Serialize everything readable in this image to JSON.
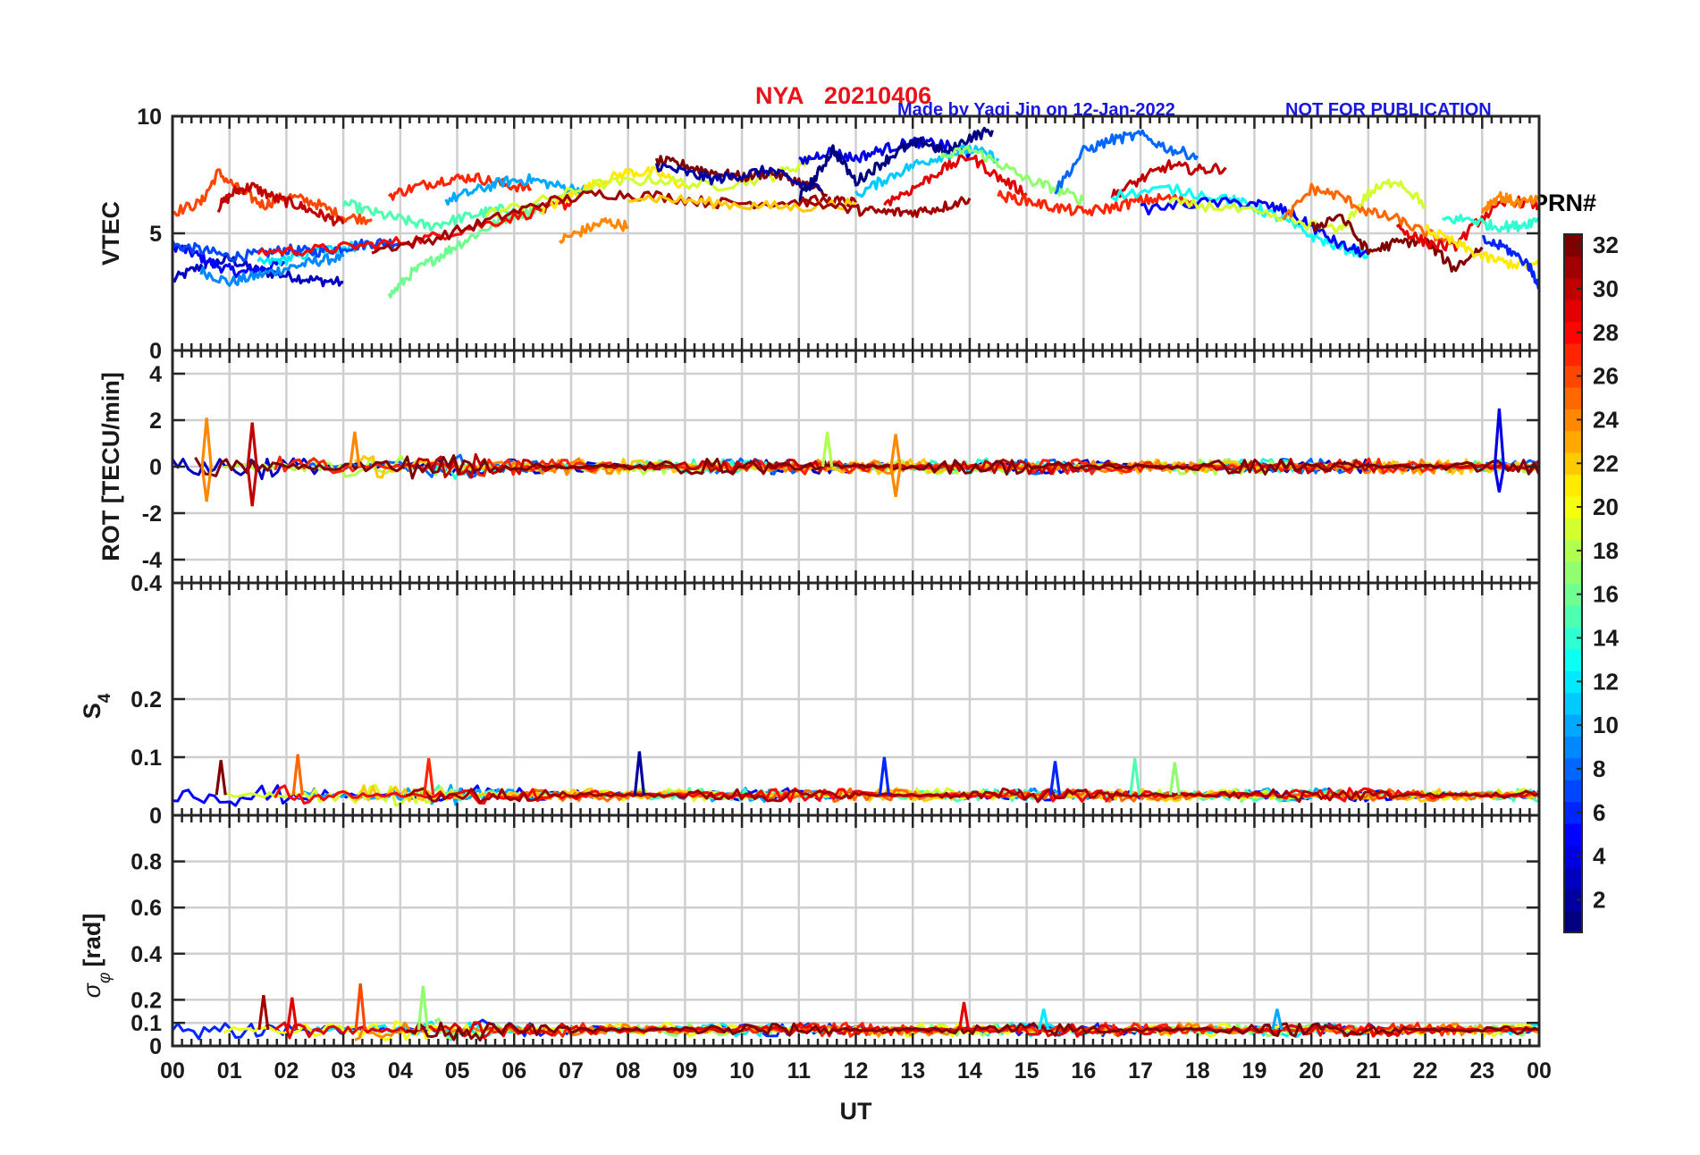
{
  "figure": {
    "station": "NYA",
    "date": "20210406",
    "credit": "Made by Yaqi Jin on 12-Jan-2022",
    "notice": "NOT FOR PUBLICATION"
  },
  "colorbar": {
    "label": "PRN#",
    "range": [
      1,
      32
    ],
    "ticks": [
      2,
      4,
      6,
      8,
      10,
      12,
      14,
      16,
      18,
      20,
      22,
      24,
      26,
      28,
      30,
      32
    ]
  },
  "chart_data": [
    {
      "type": "line",
      "panel": "vtec",
      "ylabel": "VTEC",
      "xlabel": "",
      "xlim": [
        0,
        24
      ],
      "ylim": [
        0,
        10
      ],
      "yticks": [
        0,
        5,
        10
      ],
      "grid": true,
      "color_by": "PRN",
      "note": "≈32 satellite traces colored by PRN; values estimated from gridlines",
      "series": [
        {
          "prn": 3,
          "x": [
            0,
            0.5,
            1,
            1.5,
            2,
            2.5,
            3
          ],
          "y": [
            3.0,
            3.6,
            3.9,
            3.4,
            3.2,
            3.0,
            2.9
          ]
        },
        {
          "prn": 5,
          "x": [
            0,
            0.4,
            0.8,
            1.2,
            1.6,
            2.0
          ],
          "y": [
            4.5,
            4.1,
            3.6,
            3.3,
            3.5,
            3.8
          ]
        },
        {
          "prn": 9,
          "x": [
            0.5,
            1.0,
            1.5,
            2.0,
            2.5,
            3.0
          ],
          "y": [
            3.4,
            2.9,
            3.2,
            3.5,
            3.8,
            4.0
          ]
        },
        {
          "prn": 12,
          "x": [
            1.5,
            2.0,
            2.5,
            3.0,
            3.4
          ],
          "y": [
            3.7,
            3.9,
            4.2,
            4.4,
            4.5
          ]
        },
        {
          "prn": 7,
          "x": [
            0.0,
            0.5,
            1.0,
            1.5,
            2.0,
            2.5,
            3.0,
            3.5,
            4.0
          ],
          "y": [
            4.5,
            4.3,
            4.0,
            4.1,
            4.3,
            4.2,
            4.4,
            4.6,
            4.6
          ]
        },
        {
          "prn": 26,
          "x": [
            0,
            0.5,
            0.8,
            1.2,
            1.6,
            2.0,
            2.5,
            3.0,
            3.5
          ],
          "y": [
            5.9,
            6.3,
            7.6,
            6.8,
            6.2,
            6.6,
            6.3,
            5.7,
            5.6
          ]
        },
        {
          "prn": 30,
          "x": [
            0.8,
            1.1,
            1.4,
            1.8,
            2.2,
            2.6,
            3.0
          ],
          "y": [
            6.1,
            6.8,
            7.0,
            6.5,
            6.2,
            5.8,
            5.4
          ]
        },
        {
          "prn": 15,
          "x": [
            3.0,
            3.5,
            4.0,
            4.5,
            5.0,
            5.5,
            6.0
          ],
          "y": [
            6.3,
            5.9,
            5.6,
            5.3,
            5.6,
            5.9,
            6.1
          ]
        },
        {
          "prn": 16,
          "x": [
            3.8,
            4.2,
            4.6,
            5.0,
            5.5,
            6.0,
            6.5
          ],
          "y": [
            2.3,
            3.3,
            3.9,
            4.5,
            5.2,
            5.8,
            6.1
          ]
        },
        {
          "prn": 27,
          "x": [
            3.8,
            4.3,
            4.8,
            5.3,
            5.8,
            6.3
          ],
          "y": [
            6.6,
            7.0,
            7.3,
            7.4,
            7.1,
            6.9
          ]
        },
        {
          "prn": 28,
          "x": [
            1.5,
            2.5,
            3.5,
            4.5,
            5.5,
            6.5,
            7.0
          ],
          "y": [
            4.2,
            4.3,
            4.5,
            4.8,
            5.4,
            6.0,
            6.3
          ]
        },
        {
          "prn": 10,
          "x": [
            4.8,
            5.3,
            5.8,
            6.3,
            6.8,
            7.3
          ],
          "y": [
            6.4,
            6.8,
            7.2,
            7.3,
            7.0,
            6.8
          ]
        },
        {
          "prn": 24,
          "x": [
            6.8,
            7.2,
            7.6,
            8.0
          ],
          "y": [
            4.7,
            5.1,
            5.5,
            5.3
          ]
        },
        {
          "prn": 21,
          "x": [
            6.5,
            7.0,
            7.5,
            8.0,
            8.5,
            9.0
          ],
          "y": [
            6.0,
            6.6,
            7.2,
            7.6,
            7.6,
            7.0
          ]
        },
        {
          "prn": 19,
          "x": [
            5.5,
            6.5,
            7.5,
            8.5,
            9.5,
            10.5,
            11.2
          ],
          "y": [
            5.8,
            6.4,
            7.1,
            7.3,
            7.0,
            7.4,
            8.1
          ]
        },
        {
          "prn": 31,
          "x": [
            3.5,
            4.5,
            5.5,
            6.5,
            7.5,
            8.5,
            9.5,
            10.5,
            11.5,
            12.0
          ],
          "y": [
            4.3,
            4.7,
            5.5,
            6.3,
            6.7,
            6.6,
            6.3,
            6.3,
            6.4,
            6.3
          ]
        },
        {
          "prn": 32,
          "x": [
            8.5,
            9.0,
            9.5,
            10.0,
            10.5,
            11.0,
            11.5
          ],
          "y": [
            8.1,
            7.9,
            7.6,
            7.4,
            7.6,
            7.2,
            6.6
          ]
        },
        {
          "prn": 2,
          "x": [
            8.5,
            9.0,
            9.5,
            10.0,
            10.5,
            11.0,
            11.4
          ],
          "y": [
            7.9,
            7.6,
            7.3,
            7.5,
            7.7,
            7.1,
            6.9
          ]
        },
        {
          "prn": 22,
          "x": [
            8.0,
            9.0,
            10.0,
            11.0,
            12.0
          ],
          "y": [
            6.6,
            6.4,
            6.2,
            6.1,
            6.3
          ]
        },
        {
          "prn": 4,
          "x": [
            11.0,
            11.5,
            12.0,
            12.5,
            13.0,
            13.5,
            14.0
          ],
          "y": [
            8.0,
            8.5,
            8.2,
            8.6,
            8.9,
            8.8,
            8.4
          ]
        },
        {
          "prn": 1,
          "x": [
            11.0,
            11.3,
            11.6,
            12.0,
            12.4,
            12.8,
            13.2,
            13.6,
            14.0,
            14.4
          ],
          "y": [
            6.5,
            7.4,
            8.6,
            7.2,
            7.9,
            8.6,
            8.9,
            8.4,
            9.1,
            9.4
          ]
        },
        {
          "prn": 11,
          "x": [
            12.0,
            12.5,
            13.0,
            13.5,
            14.0,
            14.5
          ],
          "y": [
            6.6,
            7.3,
            7.9,
            8.3,
            8.6,
            8.2
          ]
        },
        {
          "prn": 17,
          "x": [
            13.5,
            14.0,
            14.5,
            15.0,
            15.5,
            16.0
          ],
          "y": [
            8.2,
            8.6,
            8.0,
            7.3,
            6.9,
            6.4
          ]
        },
        {
          "prn": 29,
          "x": [
            12.5,
            13.0,
            13.5,
            14.0,
            14.5,
            15.0
          ],
          "y": [
            6.3,
            6.9,
            7.7,
            8.3,
            7.4,
            6.7
          ]
        },
        {
          "prn": 31,
          "x": [
            11.0,
            12.0,
            12.5,
            13.0,
            13.5,
            14.0
          ],
          "y": [
            6.4,
            6.0,
            5.9,
            5.9,
            6.1,
            6.5
          ]
        },
        {
          "prn": 8,
          "x": [
            15.5,
            16.0,
            16.5,
            17.0,
            17.5,
            18.0
          ],
          "y": [
            6.8,
            8.5,
            9.0,
            9.2,
            8.6,
            8.3
          ]
        },
        {
          "prn": 30,
          "x": [
            16.5,
            17.0,
            17.5,
            18.0,
            18.5
          ],
          "y": [
            6.6,
            7.3,
            7.9,
            7.7,
            7.8
          ]
        },
        {
          "prn": 27,
          "x": [
            14.5,
            15.0,
            15.5,
            16.0,
            16.5,
            17.0,
            17.5,
            18.0
          ],
          "y": [
            6.6,
            6.4,
            6.1,
            5.9,
            6.1,
            6.4,
            6.5,
            6.3
          ]
        },
        {
          "prn": 13,
          "x": [
            16.5,
            17.5,
            18.5,
            19.0,
            19.5,
            20.0,
            20.5,
            21.0
          ],
          "y": [
            6.6,
            6.9,
            6.5,
            6.1,
            5.6,
            4.9,
            4.4,
            4.1
          ]
        },
        {
          "prn": 5,
          "x": [
            17.0,
            18.0,
            19.0,
            19.5,
            20.0,
            20.5,
            21.0
          ],
          "y": [
            6.0,
            6.3,
            6.3,
            6.0,
            5.3,
            4.5,
            4.1
          ]
        },
        {
          "prn": 19,
          "x": [
            17.5,
            18.5,
            19.5,
            20.5,
            21.0,
            21.5,
            22.0
          ],
          "y": [
            6.3,
            6.1,
            5.6,
            5.1,
            6.7,
            7.3,
            6.2
          ]
        },
        {
          "prn": 25,
          "x": [
            19.5,
            20.0,
            20.5,
            21.0,
            21.5,
            22.0,
            22.5
          ],
          "y": [
            5.5,
            6.9,
            6.6,
            5.9,
            5.6,
            5.0,
            4.6
          ]
        },
        {
          "prn": 32,
          "x": [
            20.0,
            20.5,
            21.0,
            21.5,
            22.0,
            22.5,
            23.0
          ],
          "y": [
            5.2,
            5.8,
            4.2,
            4.6,
            4.7,
            3.5,
            4.4
          ]
        },
        {
          "prn": 29,
          "x": [
            21.5,
            22.0,
            22.5,
            23.0,
            23.5,
            24.0
          ],
          "y": [
            5.3,
            4.6,
            4.4,
            5.7,
            6.4,
            6.2
          ]
        },
        {
          "prn": 21,
          "x": [
            22.0,
            22.5,
            23.0,
            23.5,
            24.0
          ],
          "y": [
            5.2,
            4.6,
            4.0,
            3.7,
            3.6
          ]
        },
        {
          "prn": 14,
          "x": [
            22.3,
            22.8,
            23.2,
            23.6,
            24.0
          ],
          "y": [
            5.6,
            5.6,
            5.3,
            5.3,
            5.6
          ]
        },
        {
          "prn": 24,
          "x": [
            23.0,
            23.3,
            23.6,
            24.0
          ],
          "y": [
            6.0,
            6.6,
            6.3,
            6.4
          ]
        },
        {
          "prn": 6,
          "x": [
            23.0,
            23.4,
            23.8,
            24.0
          ],
          "y": [
            4.7,
            4.4,
            3.7,
            2.8
          ]
        }
      ]
    },
    {
      "type": "line",
      "panel": "rot",
      "ylabel": "ROT [TECU/min]",
      "xlim": [
        0,
        24
      ],
      "ylim": [
        -5,
        5
      ],
      "yticks": [
        -4,
        -2,
        0,
        2,
        4
      ],
      "grid": true,
      "note": "noisy traces fluctuating around 0",
      "spikes": [
        {
          "x": 0.6,
          "y": 2.1,
          "prn": 24
        },
        {
          "x": 0.6,
          "y": -1.5,
          "prn": 24
        },
        {
          "x": 1.4,
          "y": 1.9,
          "prn": 30
        },
        {
          "x": 1.4,
          "y": -1.7,
          "prn": 30
        },
        {
          "x": 3.2,
          "y": 1.5,
          "prn": 24
        },
        {
          "x": 11.5,
          "y": 1.5,
          "prn": 18
        },
        {
          "x": 12.7,
          "y": 1.4,
          "prn": 24
        },
        {
          "x": 12.7,
          "y": -1.3,
          "prn": 24
        },
        {
          "x": 23.3,
          "y": 2.5,
          "prn": 4
        },
        {
          "x": 23.3,
          "y": -1.1,
          "prn": 4
        }
      ]
    },
    {
      "type": "line",
      "panel": "s4",
      "ylabel": "S4",
      "xlim": [
        0,
        24
      ],
      "ylim": [
        0,
        0.4
      ],
      "yticks": [
        0,
        0.1,
        0.2
      ],
      "top_tick": "0.4",
      "grid": true,
      "note": "baseline ~0.03-0.05",
      "spikes": [
        {
          "x": 0.85,
          "y": 0.095,
          "prn": 32
        },
        {
          "x": 2.2,
          "y": 0.105,
          "prn": 25
        },
        {
          "x": 4.5,
          "y": 0.098,
          "prn": 27
        },
        {
          "x": 8.2,
          "y": 0.11,
          "prn": 2
        },
        {
          "x": 12.5,
          "y": 0.1,
          "prn": 6
        },
        {
          "x": 15.5,
          "y": 0.093,
          "prn": 6
        },
        {
          "x": 16.9,
          "y": 0.098,
          "prn": 15
        },
        {
          "x": 17.6,
          "y": 0.091,
          "prn": 17
        }
      ]
    },
    {
      "type": "line",
      "panel": "sigma_phi",
      "ylabel": "σφ [rad]",
      "xlabel": "UT",
      "xlim": [
        0,
        24
      ],
      "ylim": [
        0,
        1
      ],
      "yticks": [
        0,
        0.1,
        0.2,
        0.4,
        0.6,
        0.8
      ],
      "xticks": [
        "00",
        "01",
        "02",
        "03",
        "04",
        "05",
        "06",
        "07",
        "08",
        "09",
        "10",
        "11",
        "12",
        "13",
        "14",
        "15",
        "16",
        "17",
        "18",
        "19",
        "20",
        "21",
        "22",
        "23",
        "00"
      ],
      "grid": true,
      "note": "baseline ~0.05-0.1",
      "spikes": [
        {
          "x": 1.6,
          "y": 0.22,
          "prn": 31
        },
        {
          "x": 2.1,
          "y": 0.21,
          "prn": 29
        },
        {
          "x": 3.3,
          "y": 0.27,
          "prn": 26
        },
        {
          "x": 4.4,
          "y": 0.26,
          "prn": 17
        },
        {
          "x": 13.9,
          "y": 0.19,
          "prn": 29
        },
        {
          "x": 15.3,
          "y": 0.16,
          "prn": 12
        },
        {
          "x": 19.4,
          "y": 0.16,
          "prn": 10
        }
      ]
    }
  ]
}
